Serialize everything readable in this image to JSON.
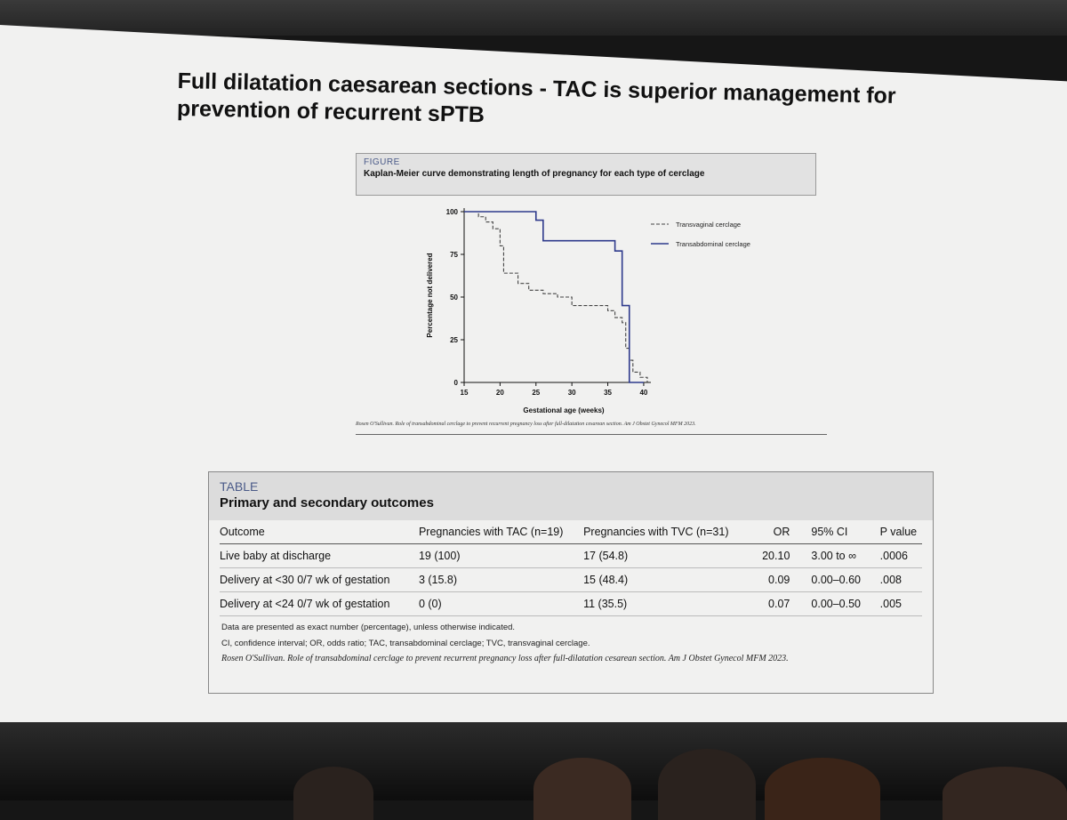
{
  "slide": {
    "title": "Full dilatation caesarean sections - TAC is superior management for prevention of recurrent sPTB"
  },
  "figure": {
    "label": "FIGURE",
    "caption": "Kaplan-Meier curve demonstrating length of pregnancy for each type of cerclage",
    "citation": "Rosen O'Sullivan. Role of transabdominal cerclage to prevent recurrent pregnancy loss after full-dilatation cesarean section. Am J Obstet Gynecol MFM 2023."
  },
  "chart_data": {
    "type": "line",
    "xlabel": "Gestational age (weeks)",
    "ylabel": "Percentage not delivered",
    "xlim": [
      15,
      41
    ],
    "ylim": [
      0,
      100
    ],
    "xticks": [
      15,
      20,
      25,
      30,
      35,
      40
    ],
    "yticks": [
      0,
      25,
      50,
      75,
      100
    ],
    "legend_position": "top-right",
    "series": [
      {
        "name": "Transvaginal cerclage",
        "style": "dashed",
        "color": "#444444",
        "x": [
          15,
          17,
          18,
          19,
          20,
          20.5,
          22.5,
          24,
          26,
          28,
          30,
          35,
          36,
          37,
          37.5,
          38,
          38.5,
          39.5,
          40.5
        ],
        "y": [
          100,
          97,
          94,
          90,
          80,
          64,
          58,
          54,
          52,
          50,
          45,
          42,
          38,
          35,
          20,
          13,
          6,
          3,
          0
        ]
      },
      {
        "name": "Transabdominal cerclage",
        "style": "solid",
        "color": "#2e3a8c",
        "x": [
          15,
          25,
          26,
          35,
          36,
          37,
          38,
          40
        ],
        "y": [
          100,
          95,
          83,
          83,
          77,
          45,
          0,
          0
        ]
      }
    ]
  },
  "table": {
    "label": "TABLE",
    "title": "Primary and secondary outcomes",
    "headers": [
      "Outcome",
      "Pregnancies with TAC (n=19)",
      "Pregnancies with TVC (n=31)",
      "OR",
      "95% CI",
      "P value"
    ],
    "rows": [
      [
        "Live baby at discharge",
        "19 (100)",
        "17 (54.8)",
        "20.10",
        "3.00 to ∞",
        ".0006"
      ],
      [
        "Delivery at <30 0/7 wk of gestation",
        "3 (15.8)",
        "15 (48.4)",
        "0.09",
        "0.00–0.60",
        ".008"
      ],
      [
        "Delivery at <24 0/7 wk of gestation",
        "0 (0)",
        "11 (35.5)",
        "0.07",
        "0.00–0.50",
        ".005"
      ]
    ],
    "note1": "Data are presented as exact number (percentage), unless otherwise indicated.",
    "note2": "CI, confidence interval; OR, odds ratio; TAC, transabdominal cerclage; TVC, transvaginal cerclage.",
    "citation": "Rosen O'Sullivan. Role of transabdominal cerclage to prevent recurrent pregnancy loss after full-dilatation cesarean section. Am J Obstet Gynecol MFM 2023."
  }
}
